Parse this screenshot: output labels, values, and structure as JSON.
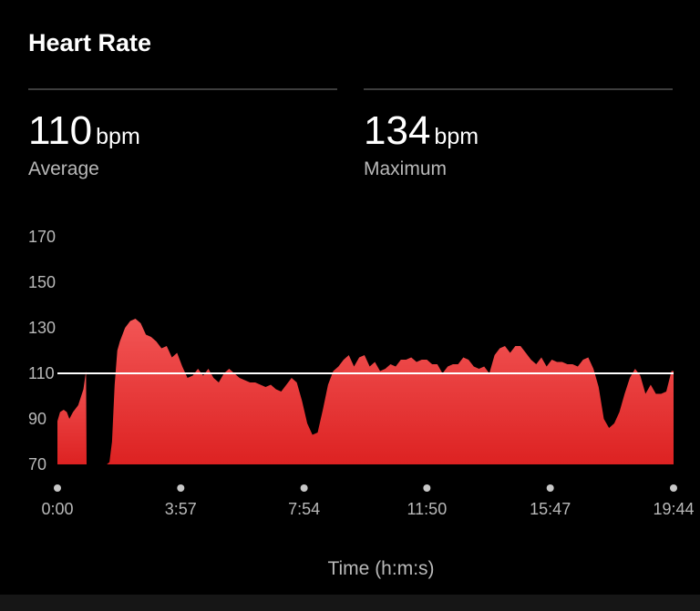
{
  "header": {
    "title": "Heart Rate"
  },
  "stats": {
    "average": {
      "value": "110",
      "unit": "bpm",
      "label": "Average"
    },
    "maximum": {
      "value": "134",
      "unit": "bpm",
      "label": "Maximum"
    }
  },
  "colors": {
    "fill_top": "#f25555",
    "fill_bottom": "#dd2222",
    "reference_line": "#ffffff",
    "background": "#000000"
  },
  "chart_data": {
    "type": "area",
    "title": "",
    "xlabel": "Time (h:m:s)",
    "ylabel": "",
    "ylim": [
      70,
      170
    ],
    "xlim": [
      0,
      1184
    ],
    "y_ticks": [
      70,
      90,
      110,
      130,
      150,
      170
    ],
    "x_ticks": [
      {
        "value": 0,
        "label": "0:00"
      },
      {
        "value": 237,
        "label": "3:57"
      },
      {
        "value": 474,
        "label": "7:54"
      },
      {
        "value": 710,
        "label": "11:50"
      },
      {
        "value": 947,
        "label": "15:47"
      },
      {
        "value": 1184,
        "label": "19:44"
      }
    ],
    "reference_line": {
      "value": 110
    },
    "grid": false,
    "series": [
      {
        "segments": [
          [
            [
              0,
              89
            ],
            [
              5,
              93
            ],
            [
              12,
              94
            ],
            [
              18,
              93
            ],
            [
              23,
              90
            ],
            [
              30,
              93
            ],
            [
              40,
              96
            ],
            [
              50,
              103
            ],
            [
              55,
              111
            ],
            [
              56,
              70
            ]
          ],
          [
            [
              95,
              70
            ],
            [
              100,
              71
            ],
            [
              105,
              80
            ],
            [
              110,
              105
            ],
            [
              115,
              120
            ],
            [
              120,
              124
            ],
            [
              130,
              130
            ],
            [
              140,
              133
            ],
            [
              150,
              134
            ],
            [
              160,
              132
            ],
            [
              170,
              127
            ],
            [
              180,
              126
            ],
            [
              190,
              124
            ],
            [
              200,
              121
            ],
            [
              210,
              122
            ],
            [
              220,
              117
            ],
            [
              230,
              119
            ],
            [
              240,
              113
            ],
            [
              250,
              108
            ],
            [
              260,
              109
            ],
            [
              270,
              112
            ],
            [
              280,
              109
            ],
            [
              290,
              112
            ],
            [
              300,
              108
            ],
            [
              310,
              106
            ],
            [
              320,
              110
            ],
            [
              330,
              112
            ],
            [
              340,
              110
            ],
            [
              350,
              108
            ],
            [
              360,
              107
            ],
            [
              370,
              106
            ],
            [
              380,
              106
            ],
            [
              390,
              105
            ],
            [
              400,
              104
            ],
            [
              410,
              105
            ],
            [
              420,
              103
            ],
            [
              430,
              102
            ],
            [
              440,
              105
            ],
            [
              450,
              108
            ],
            [
              460,
              106
            ],
            [
              470,
              98
            ],
            [
              480,
              88
            ],
            [
              490,
              83
            ],
            [
              500,
              84
            ],
            [
              510,
              94
            ],
            [
              520,
              105
            ],
            [
              530,
              111
            ],
            [
              540,
              113
            ],
            [
              550,
              116
            ],
            [
              560,
              118
            ],
            [
              570,
              113
            ],
            [
              580,
              117
            ],
            [
              590,
              118
            ],
            [
              600,
              113
            ],
            [
              610,
              115
            ],
            [
              620,
              111
            ],
            [
              630,
              112
            ],
            [
              640,
              114
            ],
            [
              650,
              113
            ],
            [
              660,
              116
            ],
            [
              670,
              116
            ],
            [
              680,
              117
            ],
            [
              690,
              115
            ],
            [
              700,
              116
            ],
            [
              710,
              116
            ],
            [
              720,
              114
            ],
            [
              730,
              114
            ],
            [
              740,
              110
            ],
            [
              750,
              113
            ],
            [
              760,
              114
            ],
            [
              770,
              114
            ],
            [
              780,
              117
            ],
            [
              790,
              116
            ],
            [
              800,
              113
            ],
            [
              810,
              112
            ],
            [
              820,
              113
            ],
            [
              830,
              110
            ],
            [
              840,
              118
            ],
            [
              850,
              121
            ],
            [
              860,
              122
            ],
            [
              870,
              119
            ],
            [
              880,
              122
            ],
            [
              890,
              122
            ],
            [
              900,
              119
            ],
            [
              910,
              116
            ],
            [
              920,
              114
            ],
            [
              930,
              117
            ],
            [
              940,
              113
            ],
            [
              950,
              116
            ],
            [
              960,
              115
            ],
            [
              970,
              115
            ],
            [
              980,
              114
            ],
            [
              990,
              114
            ],
            [
              1000,
              113
            ],
            [
              1010,
              116
            ],
            [
              1020,
              117
            ],
            [
              1030,
              112
            ],
            [
              1040,
              104
            ],
            [
              1050,
              90
            ],
            [
              1060,
              86
            ],
            [
              1070,
              88
            ],
            [
              1080,
              93
            ],
            [
              1090,
              101
            ],
            [
              1100,
              108
            ],
            [
              1110,
              112
            ],
            [
              1120,
              109
            ],
            [
              1130,
              101
            ],
            [
              1140,
              105
            ],
            [
              1150,
              101
            ],
            [
              1160,
              101
            ],
            [
              1170,
              102
            ],
            [
              1180,
              111
            ],
            [
              1184,
              111
            ]
          ]
        ]
      }
    ]
  }
}
